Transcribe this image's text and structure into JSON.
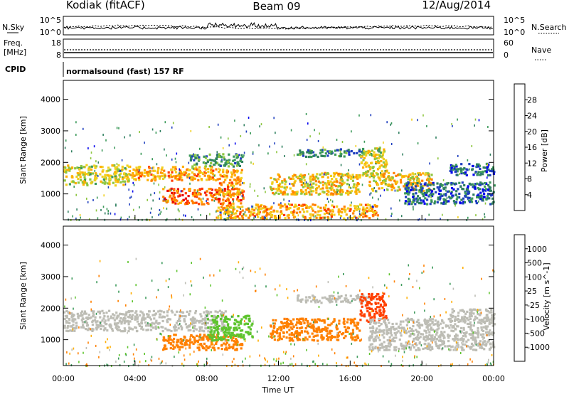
{
  "header": {
    "station": "Kodiak (fitACF)",
    "beam": "Beam 09",
    "date": "12/Aug/2014"
  },
  "panels": {
    "nsky": {
      "label": "N.Sky",
      "ticks": [
        "10^5",
        "10^0"
      ],
      "right_label": "N.Search",
      "right_ticks": [
        "10^5",
        "10^0"
      ]
    },
    "freq": {
      "label_line1": "Freq.",
      "label_line2": "[MHz]",
      "ticks": [
        "18",
        "8"
      ],
      "right_label": "Nave",
      "right_ticks": [
        "60",
        "0"
      ]
    },
    "cpid": {
      "label": "CPID",
      "value": "normalsound (fast) 157 RF"
    }
  },
  "colorbars": {
    "power": {
      "title": "Power [dB]",
      "ticks": [
        "28",
        "24",
        "20",
        "16",
        "12",
        "8",
        "4"
      ],
      "colors": [
        "#e8000b",
        "#ff3a00",
        "#ff8000",
        "#ffae00",
        "#f0d020",
        "#8dc63f",
        "#3c9a5a",
        "#2f7f5f",
        "#1f3fbf",
        "#0000ee"
      ]
    },
    "velocity": {
      "title": "Velocity [m s^-1]",
      "ticks": [
        "1000",
        "500",
        "100",
        "25",
        "-25",
        "-100",
        "-500",
        "-1000"
      ],
      "colors": [
        "#1f3fbf",
        "#2f7f5f",
        "#3c9a5a",
        "#5ec42e",
        "#bdbdb5",
        "#ffae00",
        "#ff8000",
        "#ff4000",
        "#e8000b"
      ]
    }
  },
  "chart_data": [
    {
      "type": "heatmap",
      "title": "",
      "ylabel": "Slant Range [km]",
      "xlabel": "",
      "ylim": [
        180,
        4600
      ],
      "xlim": [
        0,
        24
      ],
      "yticks": [
        1000,
        2000,
        3000,
        4000
      ],
      "quantity": "power",
      "units": "dB",
      "value_range": [
        0,
        30
      ],
      "echo_bands": [
        {
          "t0": 0.0,
          "t1": 3.6,
          "r0": 1300,
          "r1": 1950,
          "value": 16
        },
        {
          "t0": 3.6,
          "t1": 8.6,
          "r0": 1450,
          "r1": 1900,
          "value": 20
        },
        {
          "t0": 5.5,
          "t1": 10.0,
          "r0": 700,
          "r1": 1200,
          "value": 24
        },
        {
          "t0": 7.0,
          "t1": 10.0,
          "r0": 1900,
          "r1": 2300,
          "value": 10
        },
        {
          "t0": 8.6,
          "t1": 10.0,
          "r0": 1000,
          "r1": 1800,
          "value": 20
        },
        {
          "t0": 11.5,
          "t1": 16.5,
          "r0": 1000,
          "r1": 1700,
          "value": 18
        },
        {
          "t0": 13.0,
          "t1": 17.0,
          "r0": 2200,
          "r1": 2450,
          "value": 8
        },
        {
          "t0": 16.5,
          "t1": 18.0,
          "r0": 1600,
          "r1": 2500,
          "value": 16
        },
        {
          "t0": 17.0,
          "t1": 20.5,
          "r0": 1100,
          "r1": 1700,
          "value": 18
        },
        {
          "t0": 19.0,
          "t1": 24.0,
          "r0": 700,
          "r1": 1400,
          "value": 6
        },
        {
          "t0": 21.5,
          "t1": 24.0,
          "r0": 1600,
          "r1": 2000,
          "value": 6
        },
        {
          "t0": 8.5,
          "t1": 17.5,
          "r0": 250,
          "r1": 700,
          "value": 20
        }
      ]
    },
    {
      "type": "heatmap",
      "title": "",
      "ylabel": "Slant Range [km]",
      "xlabel": "Time UT",
      "ylim": [
        180,
        4600
      ],
      "xlim": [
        0,
        24
      ],
      "yticks": [
        1000,
        2000,
        3000,
        4000
      ],
      "xticks": [
        "00:00",
        "04:00",
        "08:00",
        "12:00",
        "16:00",
        "20:00",
        "00:00"
      ],
      "quantity": "velocity",
      "units": "m s^-1",
      "echo_bands": [
        {
          "t0": 0.0,
          "t1": 9.0,
          "r0": 1300,
          "r1": 1950,
          "value": 0
        },
        {
          "t0": 5.5,
          "t1": 10.0,
          "r0": 700,
          "r1": 1200,
          "value": -150
        },
        {
          "t0": 8.0,
          "t1": 10.5,
          "r0": 1000,
          "r1": 1800,
          "value": 60
        },
        {
          "t0": 11.5,
          "t1": 16.5,
          "r0": 1000,
          "r1": 1700,
          "value": -200
        },
        {
          "t0": 13.0,
          "t1": 17.0,
          "r0": 2200,
          "r1": 2450,
          "value": 0
        },
        {
          "t0": 16.5,
          "t1": 18.0,
          "r0": 1600,
          "r1": 2500,
          "value": -600
        },
        {
          "t0": 17.0,
          "t1": 24.0,
          "r0": 700,
          "r1": 1700,
          "value": 0
        },
        {
          "t0": 21.5,
          "t1": 24.0,
          "r0": 1600,
          "r1": 2000,
          "value": 0
        }
      ]
    }
  ]
}
